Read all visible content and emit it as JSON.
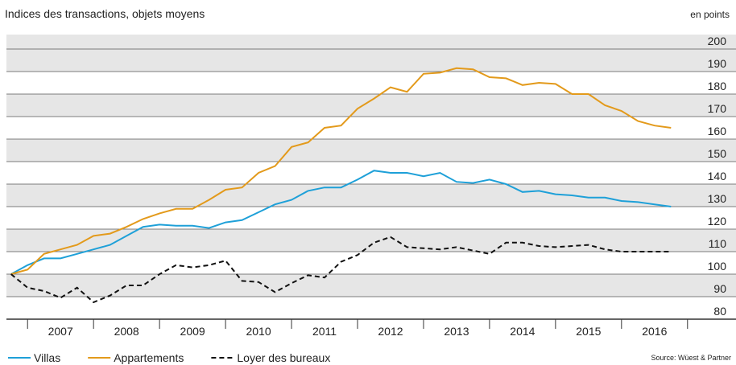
{
  "chart_data": {
    "type": "line",
    "title": "Indices des transactions, objets moyens",
    "y_label": "en points",
    "source": "Source: Wüest & Partner",
    "x": [
      2006.75,
      2007,
      2007.25,
      2007.5,
      2007.75,
      2008,
      2008.25,
      2008.5,
      2008.75,
      2009,
      2009.25,
      2009.5,
      2009.75,
      2010,
      2010.25,
      2010.5,
      2010.75,
      2011,
      2011.25,
      2011.5,
      2011.75,
      2012,
      2012.25,
      2012.5,
      2012.75,
      2013,
      2013.25,
      2013.5,
      2013.75,
      2014,
      2014.25,
      2014.5,
      2014.75,
      2015,
      2015.25,
      2015.5,
      2015.75,
      2016,
      2016.25,
      2016.5,
      2016.75
    ],
    "series": [
      {
        "name": "Villas",
        "color": "#1ea0d8",
        "dash": false,
        "values": [
          100,
          104,
          107,
          107,
          109,
          111,
          113,
          117,
          121,
          122,
          121.5,
          121.5,
          120.5,
          123,
          124,
          127.5,
          131,
          133,
          137,
          138.5,
          138.5,
          142,
          146,
          145,
          145,
          143.5,
          145,
          141,
          140.5,
          142,
          140,
          136.5,
          137,
          135.5,
          135,
          134,
          134,
          132.5,
          132,
          131,
          130
        ]
      },
      {
        "name": "Appartements",
        "color": "#e39a1b",
        "dash": false,
        "values": [
          100,
          102,
          109,
          111,
          113,
          117,
          118,
          121,
          124.5,
          127,
          129,
          129,
          133,
          137.5,
          138.5,
          145,
          148,
          156.5,
          158.5,
          165,
          166,
          173.5,
          178,
          183,
          181,
          189,
          189.5,
          191.5,
          191,
          187.5,
          187,
          184,
          185,
          184.5,
          180,
          180,
          175,
          172.5,
          168,
          166,
          165
        ]
      },
      {
        "name": "Loyer des bureaux",
        "color": "#111111",
        "dash": true,
        "values": [
          100,
          94,
          92.5,
          89.5,
          94,
          87.5,
          90.5,
          95,
          95,
          100,
          104,
          103,
          104,
          106,
          97,
          96.5,
          92,
          96,
          99.5,
          98.5,
          105.5,
          108.5,
          114,
          116.5,
          112,
          111.5,
          111,
          112,
          110.5,
          109,
          114,
          114,
          112.5,
          112,
          112.5,
          113,
          111,
          110,
          110,
          110,
          110
        ]
      }
    ],
    "xlim": [
      2006.68,
      2017.32
    ],
    "xticks": [
      {
        "value": 2007.5,
        "label": "2007"
      },
      {
        "value": 2008.5,
        "label": "2008"
      },
      {
        "value": 2009.5,
        "label": "2009"
      },
      {
        "value": 2010.5,
        "label": "2010"
      },
      {
        "value": 2011.5,
        "label": "2011"
      },
      {
        "value": 2012.5,
        "label": "2012"
      },
      {
        "value": 2013.5,
        "label": "2013"
      },
      {
        "value": 2014.5,
        "label": "2014"
      },
      {
        "value": 2015.5,
        "label": "2015"
      },
      {
        "value": 2016.5,
        "label": "2016"
      }
    ],
    "ylim": [
      80,
      200
    ],
    "yticks": [
      80,
      90,
      100,
      110,
      120,
      130,
      140,
      150,
      160,
      170,
      180,
      190,
      200
    ],
    "grid": true
  }
}
